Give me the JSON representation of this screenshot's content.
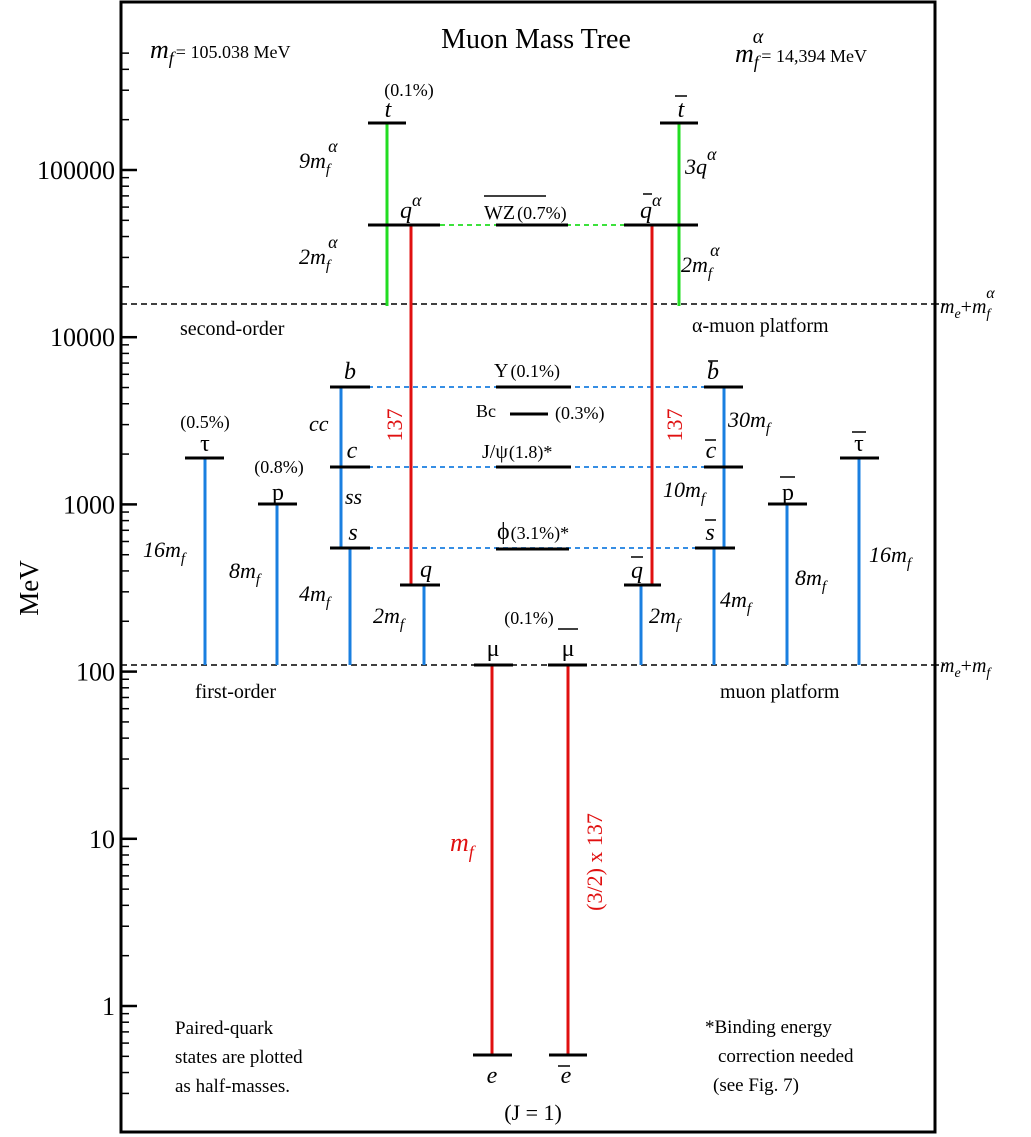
{
  "title": "Muon Mass Tree",
  "y_axis": {
    "label": "MeV",
    "scale": "log",
    "range": [
      0.3,
      500000
    ],
    "ticks": [
      {
        "value": 1,
        "label": "1"
      },
      {
        "value": 10,
        "label": "10"
      },
      {
        "value": 100,
        "label": "100"
      },
      {
        "value": 1000,
        "label": "1000"
      },
      {
        "value": 10000,
        "label": "10000"
      },
      {
        "value": 100000,
        "label": "100000"
      }
    ]
  },
  "header": {
    "mf_symbol": "m",
    "mf_sub": "f",
    "mf_value": "= 105.038 MeV",
    "mfa_symbol": "m",
    "mfa_sub": "f",
    "mfa_sup": "α",
    "mfa_value": "= 14,394 MeV"
  },
  "platforms": {
    "first_left": "first-order",
    "first_right": "muon platform",
    "first_edge": {
      "a": "m",
      "a_sub": "e",
      "plus": "+",
      "b": "m",
      "b_sub": "f"
    },
    "second_left": "second-order",
    "second_right": "α-muon platform",
    "second_edge": {
      "a": "m",
      "a_sub": "e",
      "plus": "+",
      "b": "m",
      "b_sub": "f",
      "b_sup": "α"
    }
  },
  "states": {
    "t": {
      "label": "t",
      "pct": "(0.1%)"
    },
    "tbar": {
      "label": "t"
    },
    "qa": {
      "label": "q",
      "sup": "α"
    },
    "qabar": {
      "label": "q",
      "sup": "α"
    },
    "wz": {
      "label": "WZ",
      "pct": "(0.7%)"
    },
    "b": {
      "label": "b"
    },
    "bbar": {
      "label": "b"
    },
    "upsilon": {
      "label": "Y",
      "pct": "(0.1%)"
    },
    "bc": {
      "label": "Bc",
      "pct": "(0.3%)"
    },
    "c": {
      "label": "c"
    },
    "cbar": {
      "label": "c"
    },
    "jpsi": {
      "label": "J/ψ",
      "pct": "(1.8)*"
    },
    "s": {
      "label": "s"
    },
    "sbar": {
      "label": "s"
    },
    "phi": {
      "label": "ϕ",
      "pct": "(3.1%)*"
    },
    "tau": {
      "label": "τ",
      "pct": "(0.5%)"
    },
    "taubar": {
      "label": "τ"
    },
    "p": {
      "label": "p",
      "pct": "(0.8%)"
    },
    "pbar": {
      "label": "p"
    },
    "q": {
      "label": "q"
    },
    "qbar": {
      "label": "q"
    },
    "mu": {
      "label": "μ",
      "pct": "(0.1%)"
    },
    "mubar": {
      "label": "μ"
    },
    "e": {
      "label": "e"
    },
    "ebar": {
      "label": "e"
    }
  },
  "multipliers": {
    "t_left": {
      "coef": "9m",
      "sub": "f",
      "sup": "α"
    },
    "t_right": {
      "coef": "3q",
      "sup": "α"
    },
    "qa_left": {
      "coef": "2m",
      "sub": "f",
      "sup": "α"
    },
    "qa_right": {
      "coef": "2m",
      "sub": "f",
      "sup": "α"
    },
    "cc": "cc",
    "ss": "ss",
    "bbar_right": {
      "coef": "30m",
      "sub": "f"
    },
    "cbar_right": {
      "coef": "10m",
      "sub": "f"
    },
    "tau_left": {
      "coef": "16m",
      "sub": "f"
    },
    "p_left": {
      "coef": "8m",
      "sub": "f"
    },
    "s_left": {
      "coef": "4m",
      "sub": "f"
    },
    "q_left": {
      "coef": "2m",
      "sub": "f"
    },
    "qbar_right": {
      "coef": "2m",
      "sub": "f"
    },
    "sbar_right": {
      "coef": "4m",
      "sub": "f"
    },
    "pbar_right": {
      "coef": "8m",
      "sub": "f"
    },
    "taubar_right": {
      "coef": "16m",
      "sub": "f"
    },
    "red_left": "137",
    "red_right": "137",
    "mu_mf": {
      "coef": "m",
      "sub": "f"
    },
    "mubar_factor": "(3/2) x 137"
  },
  "notes": {
    "left": [
      "Paired-quark",
      "states are plotted",
      "as half-masses."
    ],
    "right": [
      "*Binding energy",
      "correction needed",
      "(see Fig. 7)"
    ],
    "bottom": "(J = 1)"
  },
  "chart_data": {
    "type": "level-diagram",
    "title": "Muon Mass Tree",
    "ylabel": "MeV",
    "yscale": "log",
    "ylim": [
      0.3,
      500000
    ],
    "levels": [
      {
        "name": "t",
        "mass": 173000
      },
      {
        "name": "t̄",
        "mass": 173000
      },
      {
        "name": "qα",
        "mass": 43200
      },
      {
        "name": "q̄α",
        "mass": 43200
      },
      {
        "name": "WZ",
        "mass": 43200
      },
      {
        "name": "b",
        "mass": 4730
      },
      {
        "name": "b̄",
        "mass": 4730
      },
      {
        "name": "Y",
        "mass": 4730
      },
      {
        "name": "Bc",
        "mass": 3140
      },
      {
        "name": "c",
        "mass": 1550
      },
      {
        "name": "c̄",
        "mass": 1550
      },
      {
        "name": "J/ψ",
        "mass": 1550
      },
      {
        "name": "s",
        "mass": 510
      },
      {
        "name": "s̄",
        "mass": 510
      },
      {
        "name": "ϕ",
        "mass": 510
      },
      {
        "name": "τ",
        "mass": 1777
      },
      {
        "name": "τ̄",
        "mass": 1777
      },
      {
        "name": "p",
        "mass": 938
      },
      {
        "name": "p̄",
        "mass": 938
      },
      {
        "name": "q",
        "mass": 315
      },
      {
        "name": "q̄",
        "mass": 315
      },
      {
        "name": "μ",
        "mass": 105.6
      },
      {
        "name": "μ̄",
        "mass": 105.6
      },
      {
        "name": "e",
        "mass": 0.511
      },
      {
        "name": "ē",
        "mass": 0.511
      }
    ],
    "platforms": [
      {
        "name": "muon platform",
        "mass": 105.5
      },
      {
        "name": "α-muon platform",
        "mass": 14395
      }
    ],
    "colors": {
      "red": "#e01010",
      "green": "#22dd22",
      "blue": "#1a7fe0",
      "black": "#000000"
    }
  }
}
